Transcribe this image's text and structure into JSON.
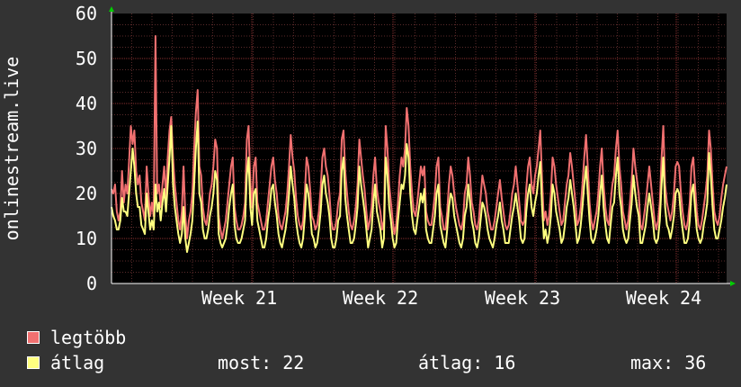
{
  "chart_data": {
    "type": "line",
    "ylabel": "onlinestream.live",
    "ylim": [
      0,
      60
    ],
    "yticks": [
      0,
      10,
      20,
      30,
      40,
      50,
      60
    ],
    "x_tick_labels": [
      "Week 21",
      "Week 22",
      "Week 23",
      "Week 24"
    ],
    "grid": true,
    "colors": {
      "background": "#333333",
      "plot": "#000000",
      "grid": "#5a2a2a",
      "max_line": "#f07070",
      "avg_line": "#ffff80",
      "axis": "#ffffff",
      "arrow": "#00cc00"
    },
    "series": [
      {
        "name": "legtöbb",
        "color": "#f07070",
        "values": [
          21,
          20,
          22,
          16,
          14,
          16,
          25,
          18,
          22,
          20,
          27,
          35,
          31,
          34,
          25,
          22,
          24,
          18,
          16,
          14,
          26,
          20,
          15,
          18,
          15,
          55,
          20,
          22,
          17,
          22,
          26,
          19,
          28,
          34,
          37,
          28,
          22,
          18,
          14,
          12,
          16,
          26,
          15,
          10,
          14,
          16,
          20,
          30,
          38,
          43,
          26,
          24,
          17,
          14,
          13,
          16,
          20,
          22,
          26,
          32,
          30,
          15,
          12,
          10,
          12,
          14,
          18,
          22,
          26,
          28,
          17,
          14,
          12,
          12,
          13,
          15,
          18,
          32,
          35,
          22,
          17,
          26,
          28,
          18,
          16,
          14,
          12,
          12,
          14,
          18,
          22,
          26,
          28,
          23,
          20,
          15,
          13,
          12,
          14,
          16,
          20,
          26,
          33,
          28,
          25,
          19,
          15,
          13,
          12,
          14,
          20,
          28,
          26,
          21,
          15,
          14,
          12,
          13,
          16,
          21,
          28,
          30,
          26,
          24,
          20,
          14,
          12,
          12,
          14,
          18,
          20,
          32,
          34,
          25,
          20,
          16,
          13,
          12,
          14,
          17,
          22,
          32,
          28,
          24,
          21,
          16,
          12,
          14,
          17,
          24,
          28,
          21,
          18,
          16,
          12,
          14,
          35,
          30,
          22,
          18,
          14,
          11,
          13,
          18,
          24,
          28,
          26,
          30,
          39,
          35,
          26,
          20,
          16,
          15,
          18,
          22,
          26,
          24,
          26,
          16,
          14,
          13,
          13,
          16,
          20,
          26,
          28,
          17,
          15,
          12,
          12,
          16,
          22,
          26,
          24,
          20,
          17,
          15,
          13,
          12,
          14,
          20,
          22,
          28,
          24,
          18,
          16,
          13,
          12,
          14,
          19,
          24,
          22,
          20,
          16,
          14,
          12,
          12,
          14,
          17,
          20,
          23,
          19,
          16,
          13,
          12,
          13,
          16,
          20,
          22,
          26,
          22,
          18,
          14,
          13,
          14,
          21,
          26,
          28,
          22,
          20,
          24,
          26,
          30,
          34,
          23,
          14,
          16,
          13,
          15,
          20,
          28,
          26,
          22,
          19,
          16,
          13,
          14,
          18,
          22,
          24,
          29,
          26,
          22,
          18,
          13,
          14,
          17,
          22,
          28,
          33,
          26,
          18,
          14,
          12,
          14,
          16,
          20,
          26,
          30,
          22,
          17,
          14,
          13,
          18,
          22,
          24,
          30,
          34,
          26,
          22,
          16,
          14,
          12,
          14,
          18,
          23,
          30,
          26,
          23,
          20,
          13,
          12,
          15,
          18,
          22,
          26,
          22,
          18,
          14,
          12,
          14,
          18,
          28,
          35,
          22,
          18,
          16,
          14,
          16,
          20,
          26,
          27,
          26,
          20,
          16,
          13,
          12,
          14,
          18,
          26,
          28,
          22,
          16,
          13,
          12,
          14,
          17,
          20,
          24,
          34,
          30,
          22,
          16,
          14,
          13,
          15,
          19,
          22,
          24,
          26
        ]
      },
      {
        "name": "átlag",
        "color": "#ffff80",
        "values": [
          17,
          15,
          14,
          12,
          12,
          14,
          19,
          16,
          16,
          15,
          20,
          25,
          30,
          26,
          20,
          17,
          17,
          13,
          12,
          11,
          20,
          16,
          12,
          14,
          12,
          22,
          16,
          18,
          14,
          18,
          21,
          16,
          22,
          28,
          35,
          22,
          17,
          14,
          11,
          9,
          11,
          17,
          10,
          7,
          9,
          11,
          14,
          22,
          30,
          36,
          20,
          18,
          12,
          10,
          10,
          12,
          15,
          17,
          20,
          25,
          23,
          11,
          9,
          8,
          9,
          10,
          13,
          17,
          20,
          22,
          13,
          10,
          9,
          9,
          10,
          12,
          14,
          24,
          28,
          17,
          13,
          20,
          21,
          14,
          12,
          10,
          8,
          8,
          10,
          14,
          17,
          21,
          22,
          18,
          15,
          11,
          9,
          8,
          10,
          12,
          15,
          20,
          26,
          22,
          19,
          14,
          11,
          9,
          8,
          10,
          15,
          22,
          20,
          16,
          11,
          10,
          8,
          9,
          12,
          16,
          22,
          24,
          20,
          18,
          15,
          10,
          8,
          8,
          10,
          14,
          15,
          25,
          28,
          19,
          15,
          12,
          9,
          9,
          10,
          13,
          17,
          26,
          22,
          19,
          16,
          12,
          8,
          10,
          12,
          18,
          22,
          16,
          14,
          12,
          8,
          10,
          28,
          24,
          17,
          14,
          10,
          8,
          9,
          14,
          18,
          22,
          21,
          24,
          31,
          28,
          20,
          15,
          12,
          11,
          14,
          17,
          20,
          18,
          21,
          12,
          10,
          9,
          9,
          12,
          15,
          20,
          22,
          13,
          11,
          9,
          8,
          12,
          17,
          20,
          19,
          15,
          13,
          11,
          9,
          8,
          10,
          15,
          17,
          22,
          18,
          14,
          12,
          9,
          8,
          10,
          14,
          18,
          17,
          15,
          12,
          10,
          9,
          8,
          10,
          13,
          15,
          18,
          14,
          12,
          9,
          9,
          9,
          12,
          15,
          17,
          20,
          17,
          14,
          10,
          9,
          10,
          16,
          20,
          22,
          17,
          15,
          18,
          20,
          24,
          27,
          17,
          10,
          12,
          9,
          11,
          15,
          22,
          20,
          16,
          14,
          12,
          9,
          10,
          13,
          17,
          19,
          23,
          20,
          17,
          13,
          9,
          10,
          13,
          17,
          22,
          26,
          20,
          14,
          10,
          9,
          10,
          12,
          15,
          20,
          24,
          17,
          13,
          10,
          9,
          13,
          17,
          18,
          24,
          28,
          20,
          17,
          12,
          10,
          9,
          10,
          14,
          18,
          24,
          20,
          17,
          15,
          9,
          9,
          11,
          13,
          17,
          20,
          17,
          14,
          10,
          9,
          10,
          14,
          22,
          28,
          17,
          13,
          12,
          10,
          12,
          15,
          20,
          21,
          20,
          15,
          12,
          9,
          9,
          10,
          14,
          20,
          22,
          17,
          12,
          10,
          9,
          10,
          13,
          15,
          18,
          29,
          24,
          17,
          12,
          10,
          10,
          12,
          14,
          17,
          19,
          22
        ]
      }
    ]
  },
  "legend": {
    "max_label": "legtöbb",
    "avg_label": "átlag"
  },
  "stats": {
    "now": "most: 22",
    "avg": "átlag: 16",
    "max": "max: 36"
  }
}
